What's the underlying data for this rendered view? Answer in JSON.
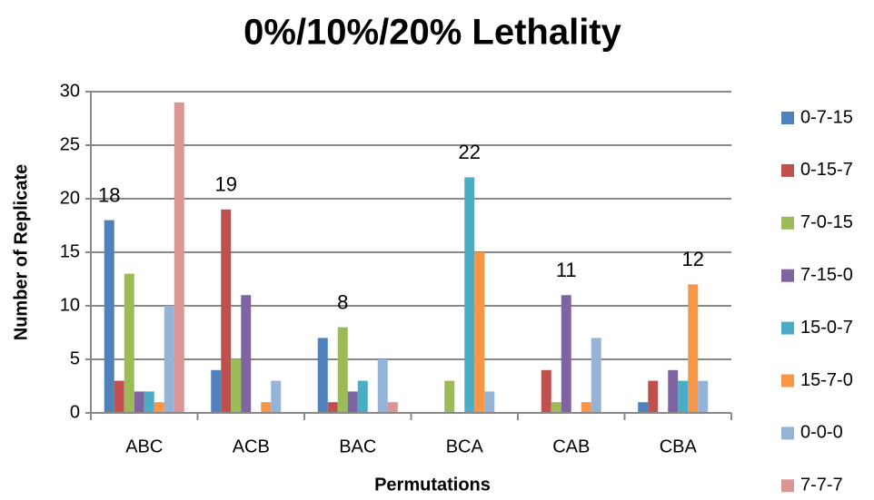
{
  "chart_data": {
    "type": "bar",
    "title": "0%/10%/20% Lethality",
    "x_label": "Permutations",
    "y_label": "Number of Replicate",
    "categories": [
      "ABC",
      "ACB",
      "BAC",
      "BCA",
      "CAB",
      "CBA"
    ],
    "series": [
      {
        "name": "0-7-15",
        "color": "#4f81bd",
        "values": [
          18,
          4,
          7,
          0,
          0,
          1
        ],
        "value_labels": [
          "18",
          null,
          null,
          null,
          null,
          null
        ]
      },
      {
        "name": "0-15-7",
        "color": "#c0504d",
        "values": [
          3,
          19,
          1,
          0,
          4,
          3
        ],
        "value_labels": [
          null,
          "19",
          null,
          null,
          null,
          null
        ]
      },
      {
        "name": "7-0-15",
        "color": "#9bbb59",
        "values": [
          13,
          5,
          8,
          3,
          1,
          0
        ],
        "value_labels": [
          null,
          null,
          "8",
          null,
          null,
          null
        ]
      },
      {
        "name": "7-15-0",
        "color": "#8064a2",
        "values": [
          2,
          11,
          2,
          0,
          11,
          4
        ],
        "value_labels": [
          null,
          null,
          null,
          null,
          "11",
          null
        ]
      },
      {
        "name": "15-0-7",
        "color": "#4bacc6",
        "values": [
          2,
          0,
          3,
          22,
          0,
          3
        ],
        "value_labels": [
          null,
          null,
          null,
          "22",
          null,
          null
        ]
      },
      {
        "name": "15-7-0",
        "color": "#f79646",
        "values": [
          1,
          1,
          0,
          15,
          1,
          12
        ],
        "value_labels": [
          null,
          null,
          null,
          null,
          null,
          "12"
        ]
      },
      {
        "name": "0-0-0",
        "color": "#95b3d7",
        "values": [
          10,
          3,
          5,
          2,
          7,
          3
        ]
      },
      {
        "name": "7-7-7",
        "color": "#d99694",
        "values": [
          29,
          0,
          1,
          0,
          0,
          0
        ]
      }
    ],
    "ylim": [
      0,
      30
    ],
    "yticks": [
      0,
      5,
      10,
      15,
      20,
      25,
      30
    ],
    "grid": true,
    "legend": "right"
  }
}
